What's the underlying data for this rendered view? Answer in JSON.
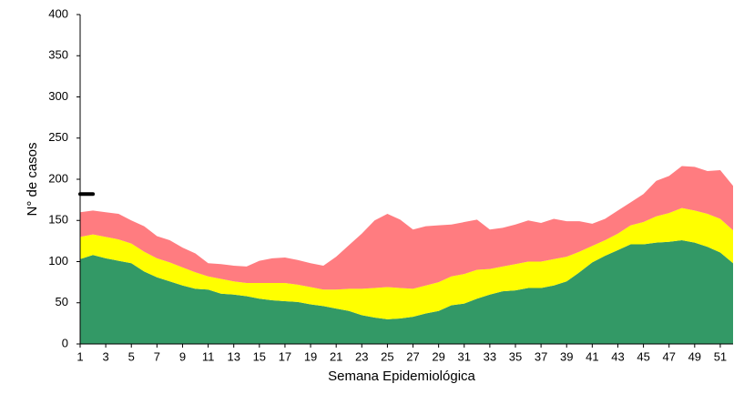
{
  "chart_data": {
    "type": "area",
    "stacked": true,
    "x_label": "Semana Epidemiológica",
    "y_label": "N° de casos",
    "x": [
      1,
      2,
      3,
      4,
      5,
      6,
      7,
      8,
      9,
      10,
      11,
      12,
      13,
      14,
      15,
      16,
      17,
      18,
      19,
      20,
      21,
      22,
      23,
      24,
      25,
      26,
      27,
      28,
      29,
      30,
      31,
      32,
      33,
      34,
      35,
      36,
      37,
      38,
      39,
      40,
      41,
      42,
      43,
      44,
      45,
      46,
      47,
      48,
      49,
      50,
      51,
      52
    ],
    "xlim": [
      1,
      52
    ],
    "xticks": [
      1,
      3,
      5,
      7,
      9,
      11,
      13,
      15,
      17,
      19,
      21,
      23,
      25,
      27,
      29,
      31,
      33,
      35,
      37,
      39,
      41,
      43,
      45,
      47,
      49,
      51
    ],
    "ylim": [
      0,
      400
    ],
    "yticks": [
      0,
      50,
      100,
      150,
      200,
      250,
      300,
      350,
      400
    ],
    "series": [
      {
        "color": "#339966",
        "values": [
          103,
          108,
          104,
          101,
          98,
          88,
          81,
          76,
          71,
          67,
          66,
          61,
          60,
          58,
          55,
          53,
          52,
          51,
          48,
          46,
          43,
          40,
          35,
          32,
          30,
          31,
          33,
          37,
          40,
          47,
          49,
          55,
          60,
          64,
          65,
          68,
          68,
          71,
          76,
          87,
          99,
          107,
          114,
          121,
          121,
          123,
          124,
          126,
          123,
          118,
          111,
          98
        ]
      },
      {
        "color": "#ffff00",
        "values": [
          27,
          25,
          26,
          26,
          24,
          24,
          23,
          23,
          22,
          20,
          16,
          18,
          16,
          16,
          19,
          21,
          22,
          21,
          21,
          20,
          23,
          27,
          32,
          36,
          39,
          37,
          34,
          34,
          35,
          35,
          36,
          35,
          31,
          30,
          32,
          32,
          32,
          32,
          30,
          25,
          20,
          19,
          20,
          23,
          27,
          32,
          35,
          39,
          39,
          40,
          41,
          40
        ]
      },
      {
        "color": "#ff7c80",
        "values": [
          30,
          29,
          30,
          31,
          28,
          31,
          27,
          27,
          24,
          23,
          16,
          18,
          19,
          20,
          27,
          30,
          31,
          30,
          29,
          29,
          40,
          53,
          67,
          82,
          89,
          83,
          72,
          72,
          69,
          63,
          63,
          61,
          48,
          47,
          48,
          50,
          47,
          49,
          43,
          37,
          27,
          26,
          28,
          28,
          34,
          43,
          45,
          51,
          53,
          52,
          59,
          54
        ]
      }
    ],
    "line_series": [
      {
        "color": "#000000",
        "values": [
          182,
          182,
          null,
          null,
          null,
          null,
          null,
          null,
          null,
          null,
          null,
          null,
          null,
          null,
          null,
          null,
          null,
          null,
          null,
          null,
          null,
          null,
          null,
          null,
          null,
          null,
          null,
          null,
          null,
          null,
          null,
          null,
          null,
          null,
          null,
          null,
          null,
          null,
          null,
          null,
          null,
          null,
          null,
          null,
          null,
          null,
          null,
          null,
          null,
          null,
          null,
          null
        ]
      }
    ]
  }
}
